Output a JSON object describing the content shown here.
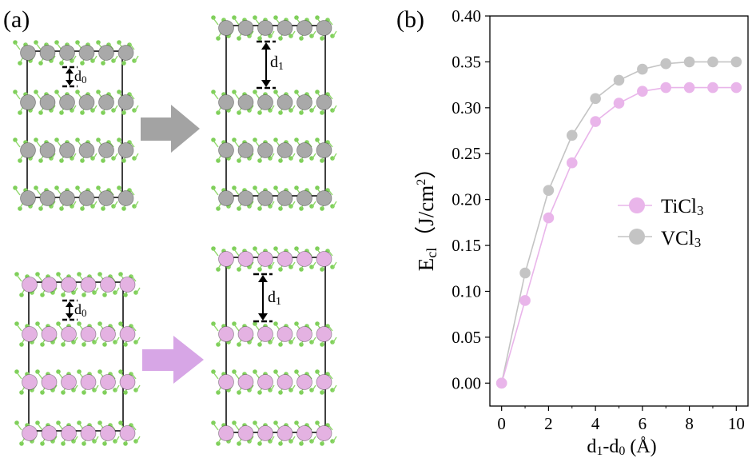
{
  "panels": {
    "a": {
      "label": "(a)"
    },
    "b": {
      "label": "(b)"
    }
  },
  "colors": {
    "titanium_atom": "#e4b2e2",
    "vanadium_atom": "#a9a9a9",
    "chlorine_atom": "#7fcf5a",
    "grey_arrow": "#a3a3a3",
    "pink_arrow": "#d7a6e6",
    "cell_outline": "#000000"
  },
  "structures": {
    "vcl3_initial": {
      "gap_label": "d",
      "gap_sub": "0"
    },
    "vcl3_cleaved": {
      "gap_label": "d",
      "gap_sub": "1"
    },
    "ticl3_initial": {
      "gap_label": "d",
      "gap_sub": "0"
    },
    "ticl3_cleaved": {
      "gap_label": "d",
      "gap_sub": "1"
    }
  },
  "chart_data": {
    "type": "line",
    "xlabel_main": "d",
    "xlabel_sub1": "1",
    "xlabel_mid": "-d",
    "xlabel_sub0": "0",
    "xlabel_unit": " (Å)",
    "ylabel_main": "E",
    "ylabel_sub": "cl",
    "ylabel_unit": "（J/cm",
    "ylabel_sup": "2",
    "ylabel_close": "）",
    "xlim": [
      -0.5,
      10.5
    ],
    "ylim": [
      -0.025,
      0.4
    ],
    "xticks": [
      0,
      2,
      4,
      6,
      8,
      10
    ],
    "xtick_labels": [
      "0",
      "2",
      "4",
      "6",
      "8",
      "10"
    ],
    "yticks": [
      0,
      0.05,
      0.1,
      0.15,
      0.2,
      0.25,
      0.3,
      0.35,
      0.4
    ],
    "ytick_labels": [
      "0.00",
      "0.05",
      "0.10",
      "0.15",
      "0.20",
      "0.25",
      "0.30",
      "0.35",
      "0.40"
    ],
    "x": [
      0,
      1,
      2,
      3,
      4,
      5,
      6,
      7,
      8,
      9,
      10
    ],
    "series": [
      {
        "name": "TiCl",
        "sub": "3",
        "color": "#e9b5ea",
        "values": [
          0,
          0.09,
          0.18,
          0.24,
          0.285,
          0.305,
          0.318,
          0.322,
          0.322,
          0.322,
          0.322
        ]
      },
      {
        "name": "VCl",
        "sub": "3",
        "color": "#c4c4c4",
        "values": [
          0,
          0.12,
          0.21,
          0.27,
          0.31,
          0.33,
          0.342,
          0.348,
          0.35,
          0.35,
          0.35
        ]
      }
    ],
    "legend_position": "center-right",
    "grid": false
  }
}
